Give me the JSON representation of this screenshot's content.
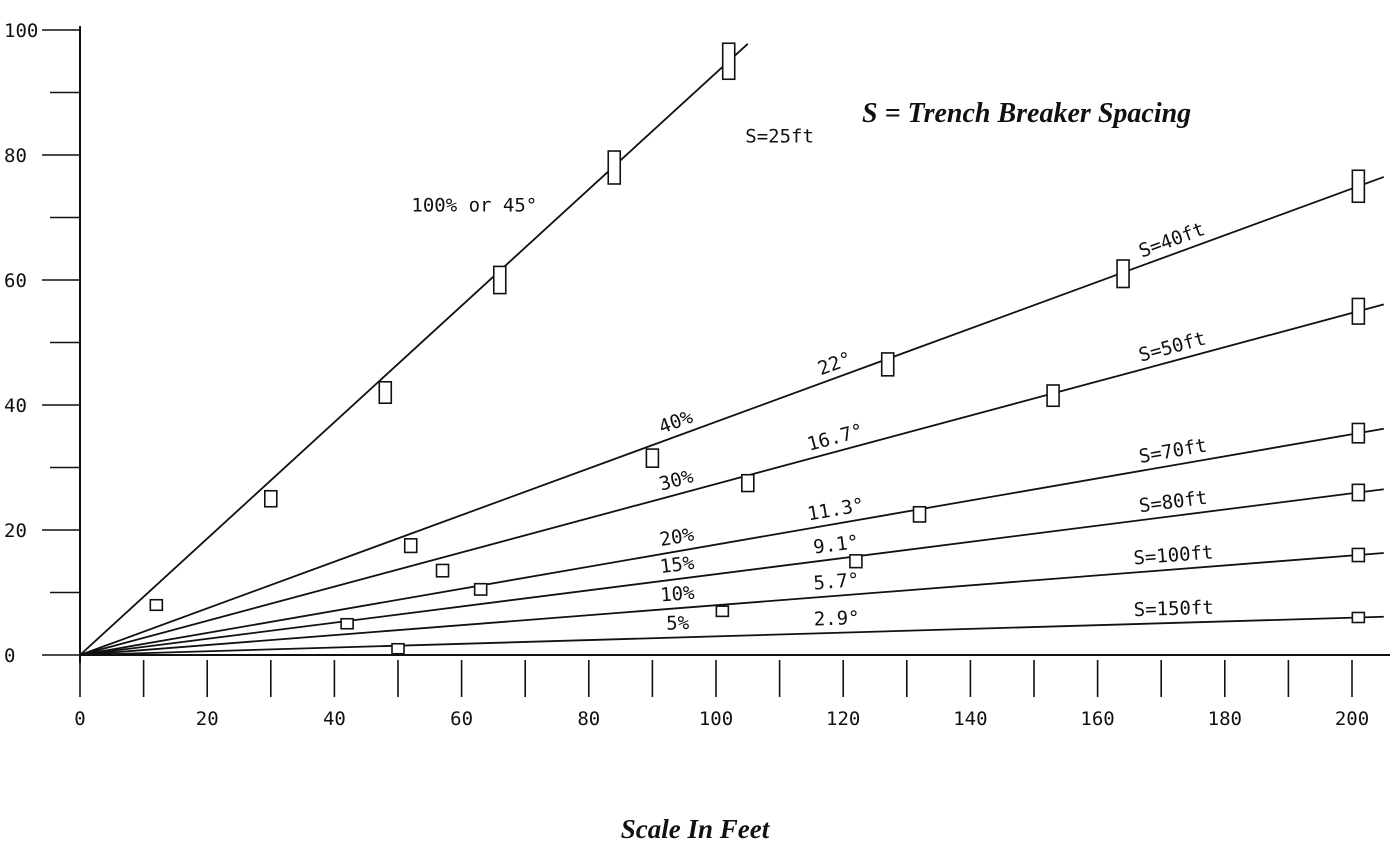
{
  "chart_data": {
    "type": "line",
    "title": "S = Trench Breaker Spacing",
    "xlabel": "Scale In Feet",
    "ylabel": "",
    "xlim": [
      0,
      205
    ],
    "ylim": [
      0,
      100
    ],
    "x_ticks": [
      0,
      20,
      40,
      60,
      80,
      100,
      120,
      140,
      160,
      180,
      200
    ],
    "x_minor_step": 10,
    "y_ticks": [
      0,
      20,
      40,
      60,
      80,
      100
    ],
    "y_minor_step": 10,
    "grid": false,
    "series": [
      {
        "name": "S=25ft",
        "slope_label": "100% or 45°",
        "angle_label": "",
        "end_x": 105,
        "markers": [
          [
            12,
            8
          ],
          [
            30,
            25
          ],
          [
            48,
            42
          ],
          [
            66,
            60
          ],
          [
            84,
            78
          ],
          [
            102,
            95
          ]
        ]
      },
      {
        "name": "S=40ft",
        "slope_label": "40%",
        "angle_label": "22°",
        "end_x": 205,
        "markers": [
          [
            52,
            17.5
          ],
          [
            90,
            31.5
          ],
          [
            127,
            46.5
          ],
          [
            164,
            61
          ],
          [
            201,
            75
          ]
        ]
      },
      {
        "name": "S=50ft",
        "slope_label": "30%",
        "angle_label": "16.7°",
        "end_x": 205,
        "markers": [
          [
            57,
            13.5
          ],
          [
            105,
            27.5
          ],
          [
            153,
            41.5
          ],
          [
            201,
            55
          ]
        ]
      },
      {
        "name": "S=70ft",
        "slope_label": "20%",
        "angle_label": "11.3°",
        "end_x": 205,
        "markers": [
          [
            132,
            22.5
          ],
          [
            201,
            35.5
          ]
        ]
      },
      {
        "name": "S=80ft",
        "slope_label": "15%",
        "angle_label": "9.1°",
        "end_x": 205,
        "markers": [
          [
            63,
            10.5
          ],
          [
            122,
            15
          ],
          [
            201,
            26
          ]
        ]
      },
      {
        "name": "S=100ft",
        "slope_label": "10%",
        "angle_label": "5.7°",
        "end_x": 205,
        "markers": [
          [
            42,
            5
          ],
          [
            101,
            7
          ],
          [
            201,
            16
          ]
        ]
      },
      {
        "name": "S=150ft",
        "slope_label": "5%",
        "angle_label": "2.9°",
        "end_x": 205,
        "markers": [
          [
            50,
            1
          ],
          [
            201,
            6
          ]
        ]
      }
    ]
  }
}
